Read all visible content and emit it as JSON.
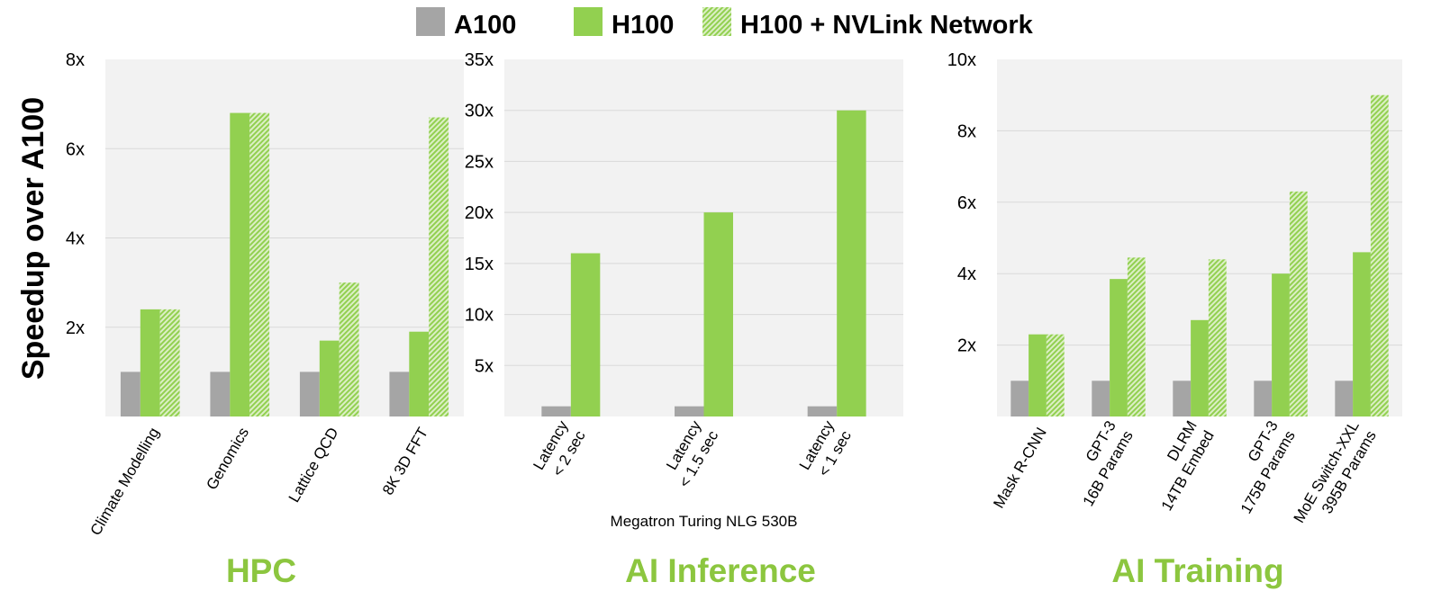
{
  "chart_data": [
    {
      "type": "bar",
      "title": "HPC",
      "ylabel": "Speedup over A100",
      "ylim": [
        0,
        8
      ],
      "yticks": [
        "2x",
        "4x",
        "6x",
        "8x"
      ],
      "ytick_values": [
        2,
        4,
        6,
        8
      ],
      "categories": [
        [
          "Climate Modelling"
        ],
        [
          "Genomics"
        ],
        [
          "Lattice QCD"
        ],
        [
          "8K 3D FFT"
        ]
      ],
      "series": [
        {
          "name": "A100",
          "values": [
            1,
            1,
            1,
            1
          ]
        },
        {
          "name": "H100",
          "values": [
            2.4,
            6.8,
            1.7,
            1.9
          ]
        },
        {
          "name": "H100 + NVLink Network",
          "values": [
            2.4,
            6.8,
            3.0,
            6.7
          ]
        }
      ]
    },
    {
      "type": "bar",
      "title": "AI Inference",
      "xlabel": "Megatron Turing NLG 530B",
      "ylim": [
        0,
        35
      ],
      "yticks": [
        "5x",
        "10x",
        "15x",
        "20x",
        "25x",
        "30x",
        "35x"
      ],
      "ytick_values": [
        5,
        10,
        15,
        20,
        25,
        30,
        35
      ],
      "categories": [
        [
          "Latency",
          "< 2 sec"
        ],
        [
          "Latency",
          "< 1.5 sec"
        ],
        [
          "Latency",
          "< 1 sec"
        ]
      ],
      "series": [
        {
          "name": "A100",
          "values": [
            1,
            1,
            1
          ]
        },
        {
          "name": "H100",
          "values": [
            16,
            20,
            30
          ]
        }
      ]
    },
    {
      "type": "bar",
      "title": "AI Training",
      "ylim": [
        0,
        10
      ],
      "yticks": [
        "2x",
        "4x",
        "6x",
        "8x",
        "10x"
      ],
      "ytick_values": [
        2,
        4,
        6,
        8,
        10
      ],
      "categories": [
        [
          "Mask R-CNN"
        ],
        [
          "GPT-3",
          "16B Params"
        ],
        [
          "DLRM",
          "14TB Embed"
        ],
        [
          "GPT-3",
          "175B Params"
        ],
        [
          "MoE Switch-XXL",
          "395B Params"
        ]
      ],
      "series": [
        {
          "name": "A100",
          "values": [
            1,
            1,
            1,
            1,
            1
          ]
        },
        {
          "name": "H100",
          "values": [
            2.3,
            3.85,
            2.7,
            4.0,
            4.6
          ]
        },
        {
          "name": "H100 + NVLink Network",
          "values": [
            2.3,
            4.45,
            4.4,
            6.3,
            9.0
          ]
        }
      ]
    }
  ],
  "legend": [
    {
      "label": "A100",
      "color": "#a5a5a5"
    },
    {
      "label": "H100",
      "color": "#92d050"
    },
    {
      "label": "H100 + NVLink Network",
      "color": "#92d050",
      "hatched": true
    }
  ],
  "colors": {
    "title": "#8cc63f",
    "bg": "#f2f2f2",
    "grid": "#d9d9d9"
  }
}
